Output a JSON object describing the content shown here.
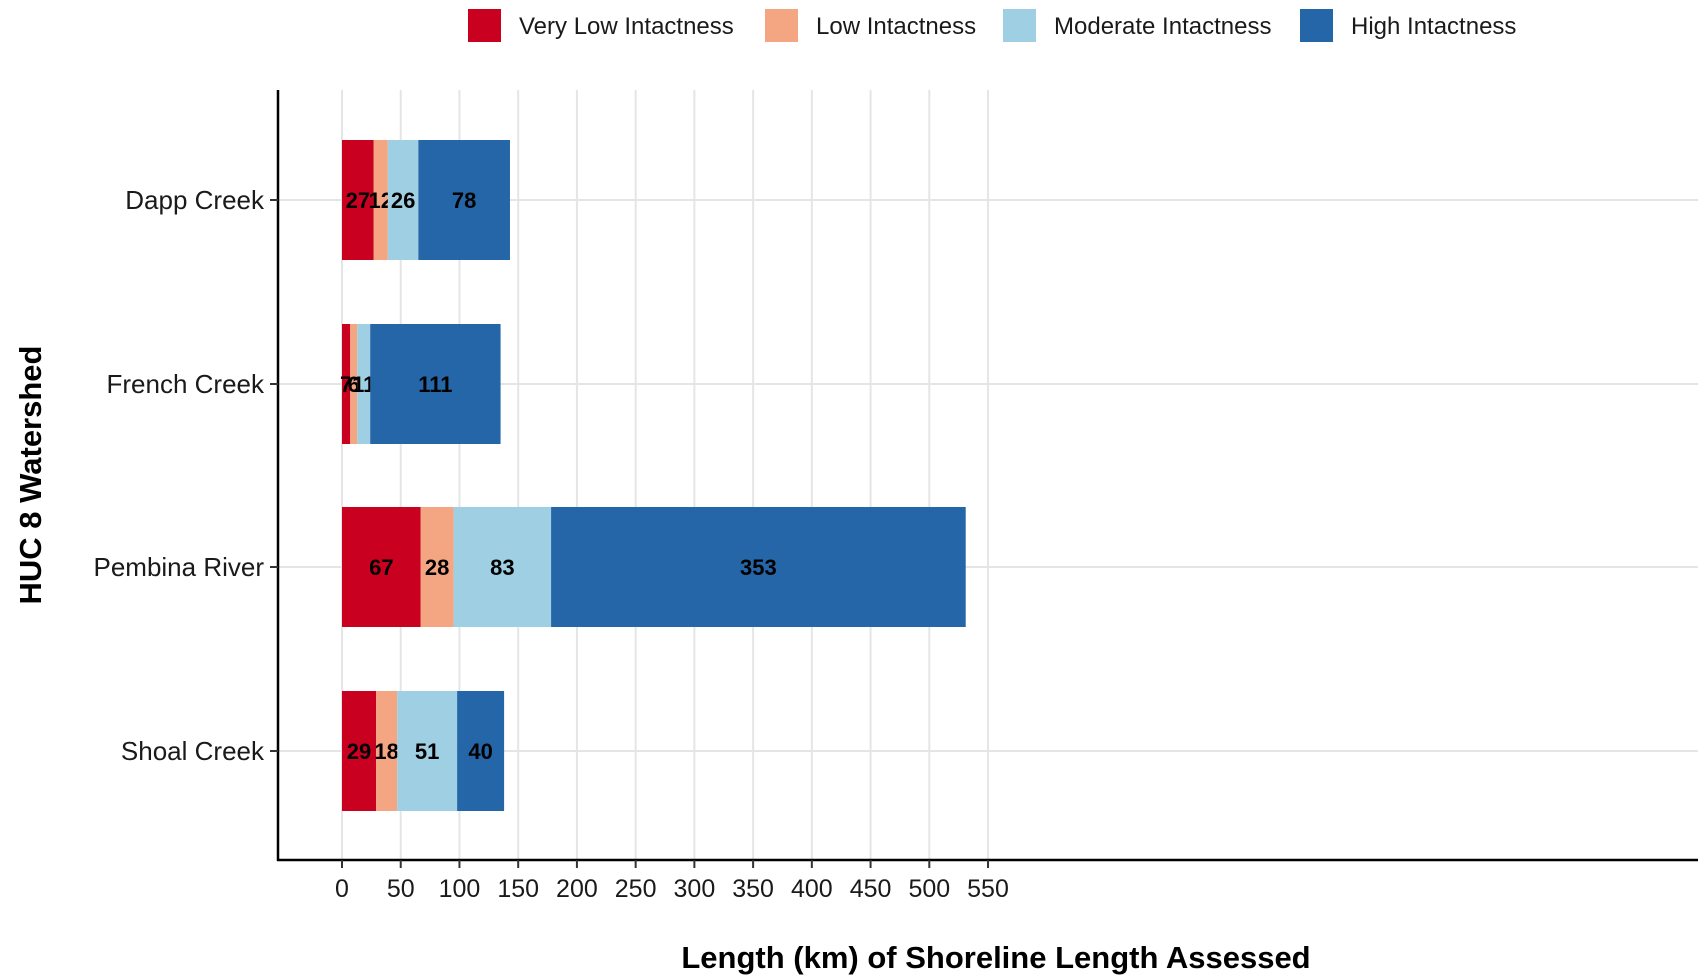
{
  "chart_data": {
    "type": "bar",
    "orientation": "horizontal",
    "stacked": true,
    "categories": [
      "Dapp Creek",
      "French Creek",
      "Pembina River",
      "Shoal Creek"
    ],
    "series": [
      {
        "name": "Very Low Intactness",
        "color": "#ca0020",
        "values": [
          27,
          7,
          67,
          29
        ]
      },
      {
        "name": "Low Intactness",
        "color": "#f4a582",
        "values": [
          12,
          6,
          28,
          18
        ]
      },
      {
        "name": "Moderate Intactness",
        "color": "#9ecfe2",
        "values": [
          26,
          11,
          83,
          51
        ]
      },
      {
        "name": "High Intactness",
        "color": "#2566a8",
        "values": [
          78,
          111,
          353,
          40
        ]
      }
    ],
    "xlabel": "Length (km) of Shoreline Length Assessed",
    "ylabel": "HUC 8 Watershed",
    "xlim": [
      0,
      550
    ],
    "xticks": [
      0,
      50,
      100,
      150,
      200,
      250,
      300,
      350,
      400,
      450,
      500,
      550
    ],
    "grid": true,
    "legend_position": "top"
  }
}
